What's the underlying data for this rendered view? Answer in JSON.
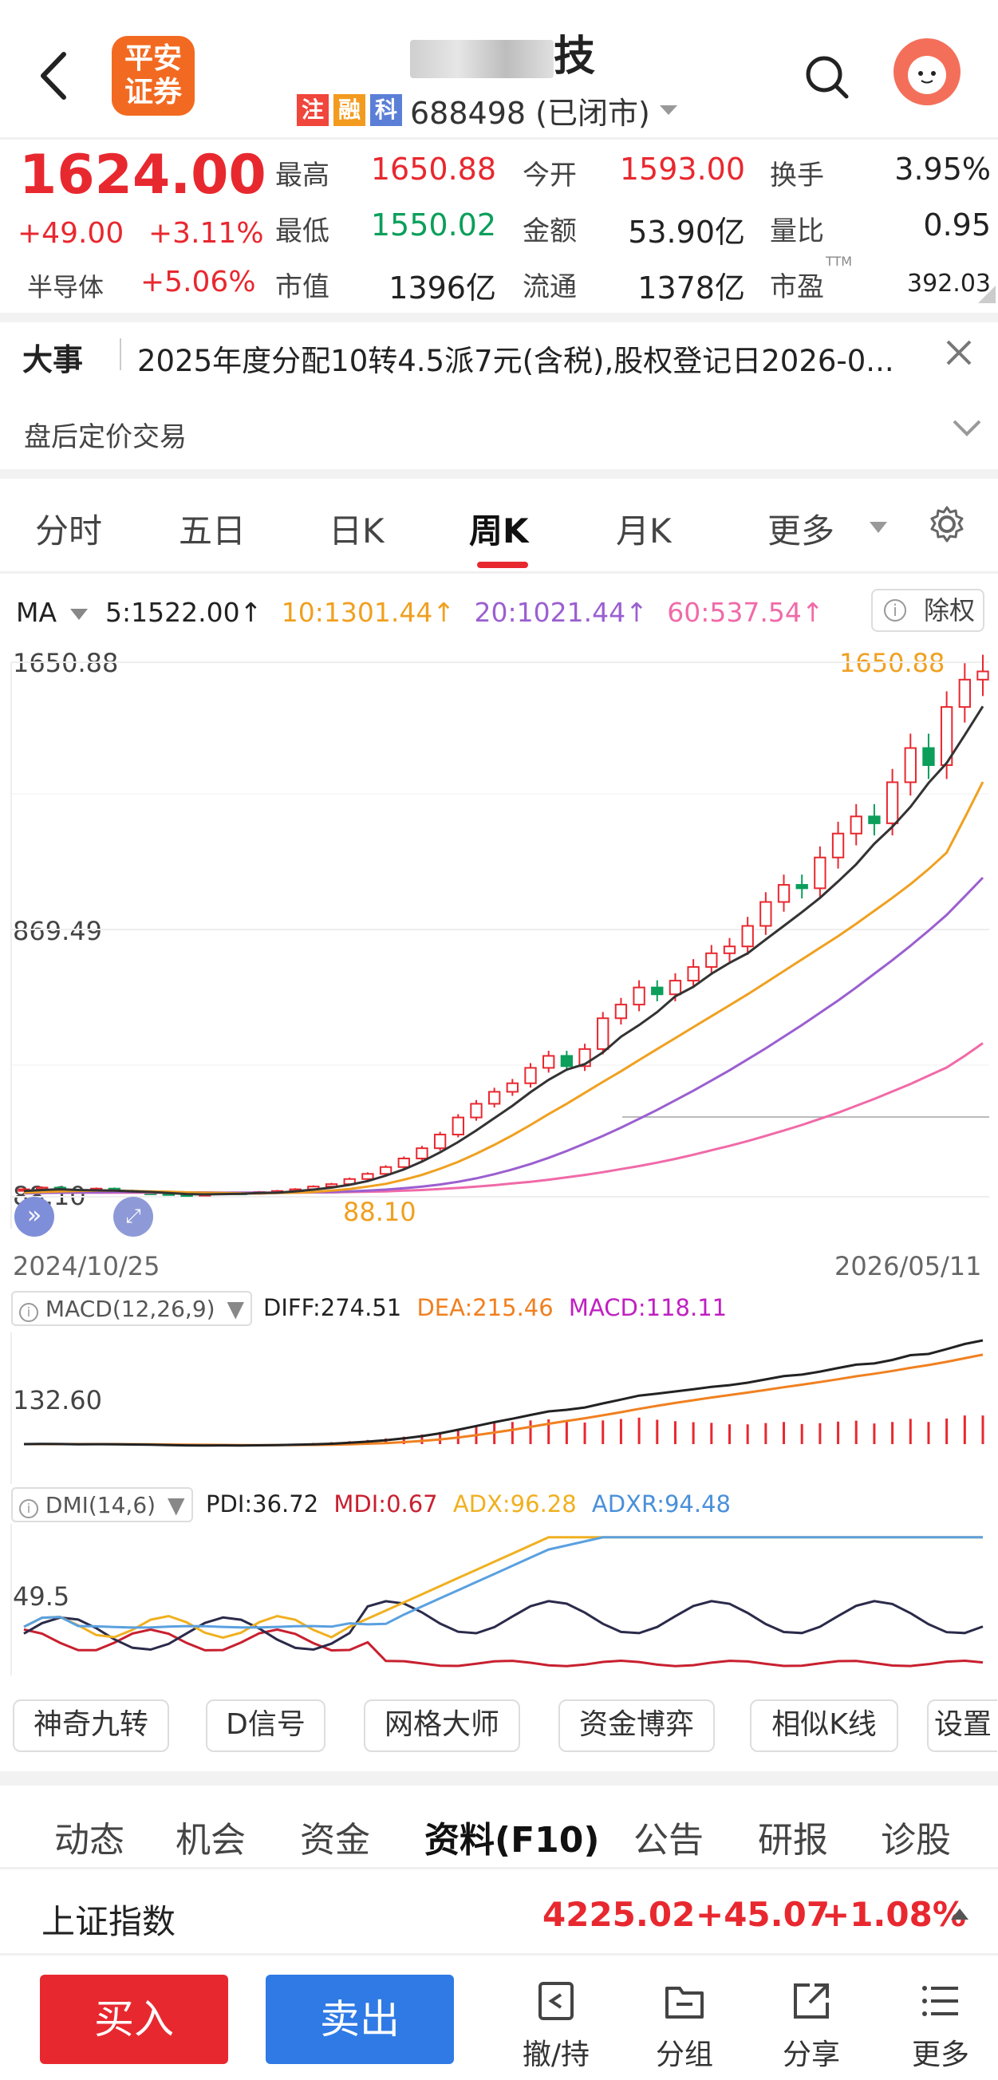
{
  "header": {
    "logo_text_line1": "平安",
    "logo_text_line2": "证券",
    "stock_name_suffix": "技",
    "tags": [
      {
        "label": "注",
        "color": "#f0463c"
      },
      {
        "label": "融",
        "color": "#f39b1e"
      },
      {
        "label": "科",
        "color": "#5b7fd6"
      }
    ],
    "code_status": "688498 (已闭市)"
  },
  "quote": {
    "price": "1624.00",
    "change": "+49.00",
    "change_pct": "+3.11%",
    "sector": "半导体",
    "sector_pct": "+5.06%",
    "fields": [
      {
        "label": "最高",
        "value": "1650.88",
        "color": "#e8282f"
      },
      {
        "label": "今开",
        "value": "1593.00",
        "color": "#e8282f"
      },
      {
        "label": "换手",
        "value": "3.95%",
        "color": "#222"
      },
      {
        "label": "最低",
        "value": "1550.02",
        "color": "#0b9f5b"
      },
      {
        "label": "金额",
        "value": "53.90亿",
        "color": "#222"
      },
      {
        "label": "量比",
        "value": "0.95",
        "color": "#222"
      },
      {
        "label": "市值",
        "value": "1396亿",
        "color": "#222"
      },
      {
        "label": "流通",
        "value": "1378亿",
        "color": "#222"
      },
      {
        "label": "市盈",
        "value": "392.03",
        "color": "#222"
      }
    ],
    "ttm": "TTM"
  },
  "events": {
    "title": "大事",
    "text": "2025年度分配10转4.5派7元(含税),股权登记日2026-0...",
    "after_hours": "盘后定价交易"
  },
  "period_tabs": [
    "分时",
    "五日",
    "日K",
    "周K",
    "月K",
    "更多"
  ],
  "active_period": "周K",
  "ma": {
    "label": "MA",
    "items": [
      {
        "text": "5:1522.00↑",
        "color": "#222"
      },
      {
        "text": "10:1301.44↑",
        "color": "#f0a020"
      },
      {
        "text": "20:1021.44↑",
        "color": "#9b5fd0"
      },
      {
        "text": "60:537.54↑",
        "color": "#f06aa8"
      }
    ],
    "adjust_label": "除权"
  },
  "chart_data": {
    "type": "candlestick",
    "y_max_label": "1650.88",
    "y_mid_label": "869.49",
    "y_min_label": "88.10",
    "high_marker": "1650.88",
    "low_marker": "88.10",
    "date_start": "2024/10/25",
    "date_end": "2026/05/11",
    "ylim": [
      88.1,
      1650.88
    ],
    "close_series": [
      110,
      115,
      108,
      104,
      112,
      106,
      100,
      98,
      95,
      92,
      96,
      100,
      97,
      102,
      105,
      110,
      118,
      125,
      140,
      155,
      175,
      200,
      230,
      270,
      320,
      360,
      395,
      420,
      465,
      500,
      470,
      520,
      610,
      650,
      700,
      680,
      720,
      760,
      800,
      820,
      880,
      950,
      1000,
      990,
      1080,
      1150,
      1200,
      1180,
      1300,
      1400,
      1350,
      1520,
      1600,
      1624
    ],
    "ma5": [
      105,
      108,
      110,
      108,
      107,
      106,
      104,
      102,
      99,
      96,
      95,
      96,
      97,
      99,
      100,
      104,
      109,
      115,
      123,
      134,
      150,
      168,
      191,
      218,
      248,
      282,
      318,
      354,
      394,
      430,
      460,
      476,
      510,
      556,
      590,
      628,
      674,
      702,
      740,
      772,
      800,
      840,
      880,
      920,
      962,
      1010,
      1060,
      1120,
      1170,
      1228,
      1298,
      1356,
      1438,
      1522
    ],
    "ma10": [
      100,
      102,
      104,
      105,
      106,
      106,
      105,
      104,
      103,
      101,
      100,
      99,
      98,
      98,
      99,
      100,
      102,
      106,
      111,
      118,
      126,
      138,
      152,
      170,
      190,
      214,
      240,
      268,
      298,
      330,
      360,
      392,
      424,
      455,
      488,
      520,
      552,
      584,
      616,
      648,
      680,
      714,
      748,
      782,
      816,
      850,
      886,
      924,
      962,
      1002,
      1046,
      1094,
      1196,
      1301
    ],
    "ma20": [
      98,
      99,
      100,
      101,
      101,
      102,
      102,
      102,
      102,
      101,
      101,
      100,
      100,
      100,
      100,
      101,
      101,
      102,
      104,
      106,
      109,
      113,
      118,
      124,
      132,
      142,
      154,
      168,
      184,
      202,
      222,
      244,
      266,
      290,
      316,
      342,
      370,
      398,
      428,
      458,
      490,
      522,
      556,
      590,
      626,
      662,
      700,
      740,
      780,
      822,
      866,
      912,
      966,
      1021
    ],
    "ma60": [
      100,
      100,
      100,
      100,
      100,
      100,
      100,
      100,
      100,
      100,
      100,
      100,
      100,
      100,
      100,
      100,
      101,
      101,
      102,
      103,
      104,
      106,
      108,
      111,
      114,
      118,
      122,
      127,
      132,
      138,
      145,
      152,
      160,
      169,
      178,
      188,
      199,
      211,
      224,
      237,
      251,
      266,
      282,
      298,
      316,
      334,
      354,
      374,
      396,
      418,
      442,
      466,
      500,
      537
    ]
  },
  "macd": {
    "label": "MACD(12,26,9)",
    "diff": "DIFF:274.51",
    "dea": "DEA:215.46",
    "macd": "MACD:118.11",
    "axis_label": "132.60"
  },
  "dmi": {
    "label": "DMI(14,6)",
    "pdi": "PDI:36.72",
    "mdi": "MDI:0.67",
    "adx": "ADX:96.28",
    "adxr": "ADXR:94.48",
    "axis_label": "49.5"
  },
  "tools": [
    "神奇九转",
    "D信号",
    "网格大师",
    "资金博弈",
    "相似K线",
    "设置"
  ],
  "bottom_tabs": [
    "动态",
    "机会",
    "资金",
    "资料(F10)",
    "公告",
    "研报",
    "诊股"
  ],
  "active_bottom_tab": "资料(F10)",
  "index_bar": {
    "name": "上证指数",
    "value": "4225.02",
    "change": "+45.07",
    "pct": "+1.08%"
  },
  "actions": {
    "buy": "买入",
    "sell": "卖出",
    "tools": [
      "撤/持",
      "分组",
      "分享",
      "更多"
    ]
  }
}
